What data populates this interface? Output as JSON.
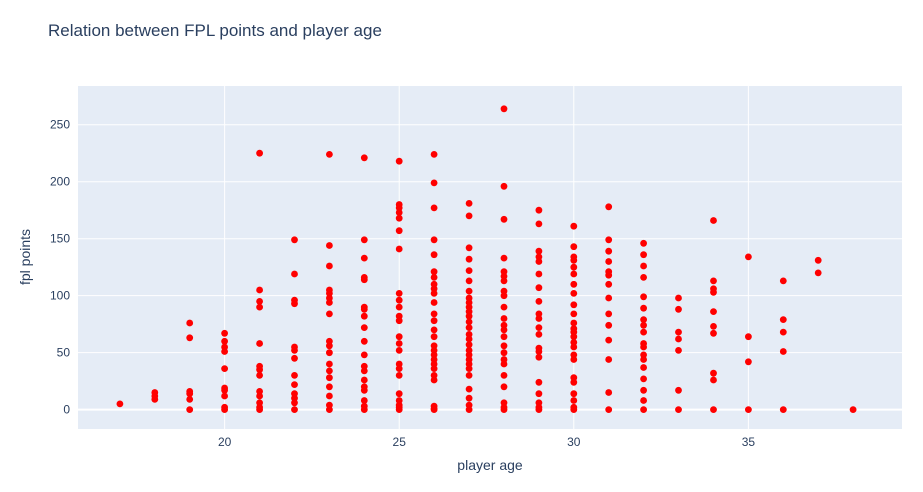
{
  "chart_data": {
    "type": "scatter",
    "title": "Relation between FPL points and player age",
    "xlabel": "player age",
    "ylabel": "fpl points",
    "xlim": [
      15.8,
      39.4
    ],
    "ylim": [
      -17,
      284
    ],
    "x_ticks": [
      20,
      25,
      30,
      35
    ],
    "y_ticks": [
      0,
      50,
      100,
      150,
      200,
      250
    ],
    "grid": true,
    "legend": "none",
    "colors": {
      "marker": "#ff0000",
      "plot_bg": "#e5ecf6",
      "grid": "#ffffff",
      "text": "#2a3f5f"
    },
    "points": [
      [
        17,
        5
      ],
      [
        18,
        15
      ],
      [
        18,
        12
      ],
      [
        18,
        9
      ],
      [
        19,
        76
      ],
      [
        19,
        63
      ],
      [
        19,
        16
      ],
      [
        19,
        14
      ],
      [
        19,
        9
      ],
      [
        19,
        0
      ],
      [
        20,
        67
      ],
      [
        20,
        60
      ],
      [
        20,
        55
      ],
      [
        20,
        51
      ],
      [
        20,
        36
      ],
      [
        20,
        19
      ],
      [
        20,
        17
      ],
      [
        20,
        12
      ],
      [
        20,
        2
      ],
      [
        20,
        0
      ],
      [
        21,
        225
      ],
      [
        21,
        105
      ],
      [
        21,
        95
      ],
      [
        21,
        90
      ],
      [
        21,
        58
      ],
      [
        21,
        38
      ],
      [
        21,
        35
      ],
      [
        21,
        30
      ],
      [
        21,
        16
      ],
      [
        21,
        12
      ],
      [
        21,
        6
      ],
      [
        21,
        2
      ],
      [
        21,
        0
      ],
      [
        22,
        149
      ],
      [
        22,
        119
      ],
      [
        22,
        96
      ],
      [
        22,
        93
      ],
      [
        22,
        55
      ],
      [
        22,
        52
      ],
      [
        22,
        45
      ],
      [
        22,
        30
      ],
      [
        22,
        22
      ],
      [
        22,
        14
      ],
      [
        22,
        10
      ],
      [
        22,
        6
      ],
      [
        22,
        0
      ],
      [
        23,
        224
      ],
      [
        23,
        144
      ],
      [
        23,
        126
      ],
      [
        23,
        105
      ],
      [
        23,
        102
      ],
      [
        23,
        98
      ],
      [
        23,
        94
      ],
      [
        23,
        84
      ],
      [
        23,
        60
      ],
      [
        23,
        56
      ],
      [
        23,
        50
      ],
      [
        23,
        40
      ],
      [
        23,
        34
      ],
      [
        23,
        28
      ],
      [
        23,
        20
      ],
      [
        23,
        12
      ],
      [
        23,
        4
      ],
      [
        23,
        0
      ],
      [
        24,
        221
      ],
      [
        24,
        149
      ],
      [
        24,
        133
      ],
      [
        24,
        116
      ],
      [
        24,
        114
      ],
      [
        24,
        90
      ],
      [
        24,
        88
      ],
      [
        24,
        82
      ],
      [
        24,
        72
      ],
      [
        24,
        60
      ],
      [
        24,
        48
      ],
      [
        24,
        38
      ],
      [
        24,
        34
      ],
      [
        24,
        26
      ],
      [
        24,
        20
      ],
      [
        24,
        17
      ],
      [
        24,
        8
      ],
      [
        24,
        3
      ],
      [
        24,
        0
      ],
      [
        25,
        218
      ],
      [
        25,
        180
      ],
      [
        25,
        177
      ],
      [
        25,
        173
      ],
      [
        25,
        168
      ],
      [
        25,
        157
      ],
      [
        25,
        141
      ],
      [
        25,
        102
      ],
      [
        25,
        96
      ],
      [
        25,
        90
      ],
      [
        25,
        82
      ],
      [
        25,
        78
      ],
      [
        25,
        64
      ],
      [
        25,
        58
      ],
      [
        25,
        52
      ],
      [
        25,
        40
      ],
      [
        25,
        36
      ],
      [
        25,
        30
      ],
      [
        25,
        14
      ],
      [
        25,
        8
      ],
      [
        25,
        4
      ],
      [
        25,
        2
      ],
      [
        25,
        0
      ],
      [
        26,
        224
      ],
      [
        26,
        199
      ],
      [
        26,
        177
      ],
      [
        26,
        149
      ],
      [
        26,
        136
      ],
      [
        26,
        121
      ],
      [
        26,
        116
      ],
      [
        26,
        110
      ],
      [
        26,
        106
      ],
      [
        26,
        102
      ],
      [
        26,
        94
      ],
      [
        26,
        84
      ],
      [
        26,
        78
      ],
      [
        26,
        70
      ],
      [
        26,
        64
      ],
      [
        26,
        56
      ],
      [
        26,
        52
      ],
      [
        26,
        48
      ],
      [
        26,
        44
      ],
      [
        26,
        40
      ],
      [
        26,
        36
      ],
      [
        26,
        30
      ],
      [
        26,
        26
      ],
      [
        26,
        3
      ],
      [
        26,
        1
      ],
      [
        26,
        0
      ],
      [
        27,
        181
      ],
      [
        27,
        170
      ],
      [
        27,
        142
      ],
      [
        27,
        132
      ],
      [
        27,
        122
      ],
      [
        27,
        113
      ],
      [
        27,
        104
      ],
      [
        27,
        98
      ],
      [
        27,
        94
      ],
      [
        27,
        90
      ],
      [
        27,
        86
      ],
      [
        27,
        82
      ],
      [
        27,
        77
      ],
      [
        27,
        72
      ],
      [
        27,
        66
      ],
      [
        27,
        62
      ],
      [
        27,
        57
      ],
      [
        27,
        52
      ],
      [
        27,
        48
      ],
      [
        27,
        44
      ],
      [
        27,
        40
      ],
      [
        27,
        36
      ],
      [
        27,
        30
      ],
      [
        27,
        18
      ],
      [
        27,
        10
      ],
      [
        27,
        4
      ],
      [
        27,
        0
      ],
      [
        28,
        264
      ],
      [
        28,
        196
      ],
      [
        28,
        167
      ],
      [
        28,
        133
      ],
      [
        28,
        121
      ],
      [
        28,
        117
      ],
      [
        28,
        113
      ],
      [
        28,
        104
      ],
      [
        28,
        100
      ],
      [
        28,
        90
      ],
      [
        28,
        80
      ],
      [
        28,
        74
      ],
      [
        28,
        70
      ],
      [
        28,
        64
      ],
      [
        28,
        56
      ],
      [
        28,
        50
      ],
      [
        28,
        44
      ],
      [
        28,
        40
      ],
      [
        28,
        30
      ],
      [
        28,
        20
      ],
      [
        28,
        6
      ],
      [
        28,
        2
      ],
      [
        28,
        0
      ],
      [
        29,
        175
      ],
      [
        29,
        163
      ],
      [
        29,
        139
      ],
      [
        29,
        134
      ],
      [
        29,
        130
      ],
      [
        29,
        119
      ],
      [
        29,
        107
      ],
      [
        29,
        95
      ],
      [
        29,
        84
      ],
      [
        29,
        80
      ],
      [
        29,
        72
      ],
      [
        29,
        66
      ],
      [
        29,
        54
      ],
      [
        29,
        51
      ],
      [
        29,
        46
      ],
      [
        29,
        24
      ],
      [
        29,
        14
      ],
      [
        29,
        6
      ],
      [
        29,
        2
      ],
      [
        29,
        0
      ],
      [
        30,
        161
      ],
      [
        30,
        143
      ],
      [
        30,
        134
      ],
      [
        30,
        131
      ],
      [
        30,
        125
      ],
      [
        30,
        119
      ],
      [
        30,
        110
      ],
      [
        30,
        102
      ],
      [
        30,
        92
      ],
      [
        30,
        84
      ],
      [
        30,
        76
      ],
      [
        30,
        71
      ],
      [
        30,
        68
      ],
      [
        30,
        64
      ],
      [
        30,
        59
      ],
      [
        30,
        55
      ],
      [
        30,
        48
      ],
      [
        30,
        44
      ],
      [
        30,
        28
      ],
      [
        30,
        24
      ],
      [
        30,
        14
      ],
      [
        30,
        8
      ],
      [
        30,
        2
      ],
      [
        30,
        0
      ],
      [
        31,
        178
      ],
      [
        31,
        149
      ],
      [
        31,
        139
      ],
      [
        31,
        130
      ],
      [
        31,
        121
      ],
      [
        31,
        118
      ],
      [
        31,
        110
      ],
      [
        31,
        98
      ],
      [
        31,
        84
      ],
      [
        31,
        74
      ],
      [
        31,
        61
      ],
      [
        31,
        44
      ],
      [
        31,
        15
      ],
      [
        31,
        0
      ],
      [
        32,
        146
      ],
      [
        32,
        136
      ],
      [
        32,
        126
      ],
      [
        32,
        116
      ],
      [
        32,
        99
      ],
      [
        32,
        89
      ],
      [
        32,
        79
      ],
      [
        32,
        74
      ],
      [
        32,
        68
      ],
      [
        32,
        58
      ],
      [
        32,
        55
      ],
      [
        32,
        48
      ],
      [
        32,
        44
      ],
      [
        32,
        37
      ],
      [
        32,
        27
      ],
      [
        32,
        17
      ],
      [
        32,
        8
      ],
      [
        32,
        0
      ],
      [
        33,
        98
      ],
      [
        33,
        88
      ],
      [
        33,
        68
      ],
      [
        33,
        62
      ],
      [
        33,
        52
      ],
      [
        33,
        17
      ],
      [
        33,
        0
      ],
      [
        34,
        166
      ],
      [
        34,
        113
      ],
      [
        34,
        106
      ],
      [
        34,
        103
      ],
      [
        34,
        86
      ],
      [
        34,
        73
      ],
      [
        34,
        67
      ],
      [
        34,
        32
      ],
      [
        34,
        26
      ],
      [
        34,
        0
      ],
      [
        35,
        134
      ],
      [
        35,
        64
      ],
      [
        35,
        42
      ],
      [
        35,
        0
      ],
      [
        36,
        113
      ],
      [
        36,
        79
      ],
      [
        36,
        68
      ],
      [
        36,
        51
      ],
      [
        36,
        0
      ],
      [
        37,
        131
      ],
      [
        37,
        120
      ],
      [
        38,
        0
      ]
    ]
  }
}
